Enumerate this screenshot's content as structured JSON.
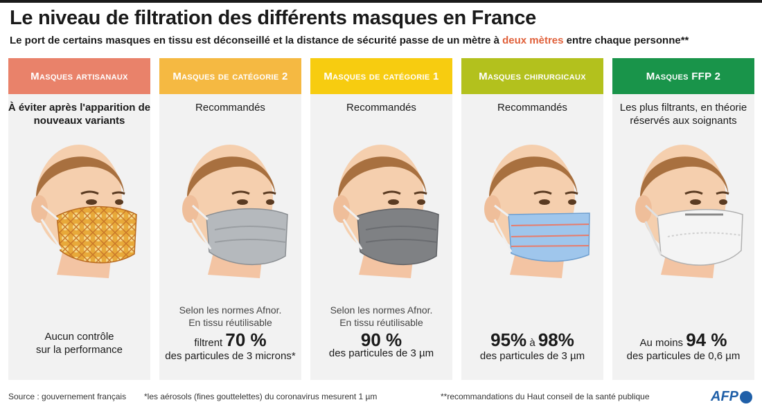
{
  "title": "Le niveau de filtration des différents masques en France",
  "subtitle": {
    "before": "Le port de certains masques en tissu est déconseillé et la distance de sécurité passe de un mètre à ",
    "highlight": "deux mètres",
    "after": " entre chaque personne**"
  },
  "colors": {
    "artisanaux": "#e9826a",
    "categorie2": "#f5b942",
    "categorie1": "#f7cc10",
    "chirurgicaux": "#b3c11d",
    "ffp2": "#19944a",
    "highlight": "#e0603a",
    "panel": "#f2f2f2"
  },
  "columns": [
    {
      "header": "Masques artisanaux",
      "recommendation": "À éviter après l'apparition de nouveaux variants",
      "mask_icon": "fabric-patterned-mask-face-icon",
      "norm": "",
      "perf_line1": "Aucun contrôle",
      "perf_line2": "sur la performance"
    },
    {
      "header": "Masques de catégorie 2",
      "recommendation": "Recommandés",
      "mask_icon": "grey-cloth-mask-face-icon",
      "norm_line1": "Selon les normes Afnor.",
      "norm_line2": "En tissu réutilisable",
      "perf_prefix": "filtrent ",
      "perf_value": "70 %",
      "perf_suffix": "des particules de 3 microns*"
    },
    {
      "header": "Masques de catégorie 1",
      "recommendation": "Recommandés",
      "mask_icon": "dark-grey-cloth-mask-face-icon",
      "norm_line1": "Selon les normes Afnor.",
      "norm_line2": "En tissu réutilisable",
      "perf_value": "90 %",
      "perf_suffix": "des particules de 3 µm"
    },
    {
      "header": "Masques chirurgicaux",
      "recommendation": "Recommandés",
      "mask_icon": "blue-surgical-mask-face-icon",
      "perf_value_a": "95%",
      "perf_mid": " à ",
      "perf_value_b": "98%",
      "perf_suffix": "des particules de 3 µm"
    },
    {
      "header": "Masques FFP 2",
      "recommendation": "Les plus filtrants, en théorie réservés aux soignants",
      "mask_icon": "white-ffp2-mask-face-icon",
      "perf_prefix": "Au moins ",
      "perf_value": "94 %",
      "perf_suffix": "des particules de 0,6 µm"
    }
  ],
  "footer": {
    "source": "Source : gouvernement français",
    "note1": "*les aérosols (fines gouttelettes) du coronavirus mesurent 1 µm",
    "note2": "**recommandations du Haut conseil de la santé publique",
    "logo": "AFP"
  }
}
